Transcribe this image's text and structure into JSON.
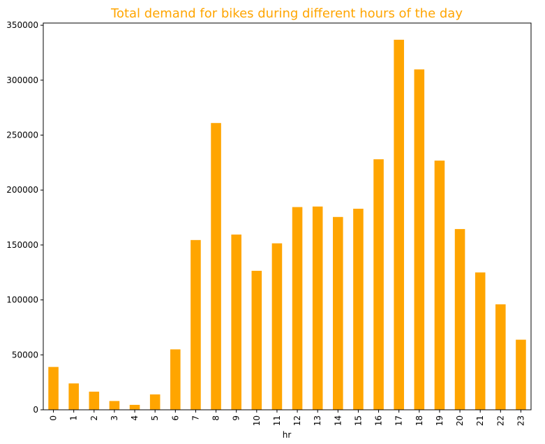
{
  "chart_data": {
    "type": "bar",
    "title": "Total demand for bikes during different hours of the day",
    "xlabel": "hr",
    "ylabel": "",
    "categories": [
      "0",
      "1",
      "2",
      "3",
      "4",
      "5",
      "6",
      "7",
      "8",
      "9",
      "10",
      "11",
      "12",
      "13",
      "14",
      "15",
      "16",
      "17",
      "18",
      "19",
      "20",
      "21",
      "22",
      "23"
    ],
    "values": [
      39000,
      24000,
      16500,
      8000,
      4500,
      14000,
      55000,
      154500,
      261000,
      159500,
      126500,
      151500,
      184500,
      185000,
      175500,
      183000,
      228000,
      336800,
      309800,
      226800,
      164500,
      125000,
      96000,
      63800
    ],
    "ylim": [
      0,
      352000
    ],
    "yticks": [
      0,
      50000,
      100000,
      150000,
      200000,
      250000,
      300000,
      350000
    ],
    "ytick_labels": [
      "0",
      "50000",
      "100000",
      "150000",
      "200000",
      "250000",
      "300000",
      "350000"
    ],
    "grid": false,
    "legend": "none",
    "bar_color": "#FFA500",
    "title_color": "#FFA500"
  }
}
